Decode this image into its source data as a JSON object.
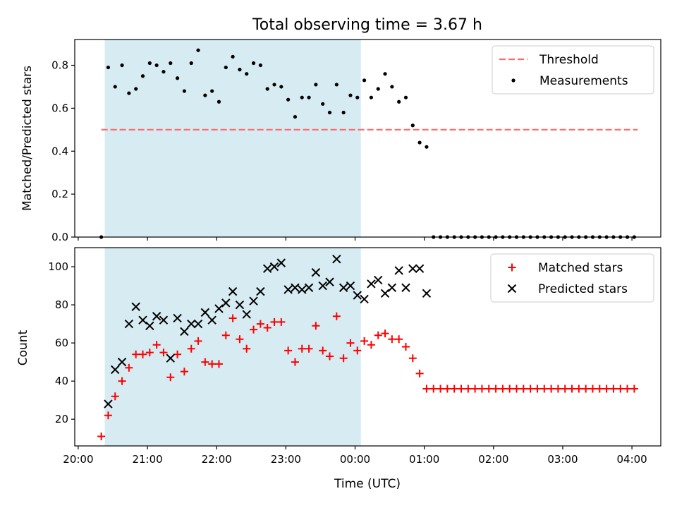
{
  "chart_data": [
    {
      "type": "scatter",
      "title": "Total observing time = 3.67 h",
      "xlabel": "",
      "ylabel": "Matched/Predicted stars",
      "xlim": [
        "19:57",
        "04:25"
      ],
      "ylim": [
        0,
        0.92
      ],
      "yticks": [
        0.0,
        0.2,
        0.4,
        0.6,
        0.8
      ],
      "ytick_labels": [
        "0.0",
        "0.2",
        "0.4",
        "0.6",
        "0.8"
      ],
      "grid": false,
      "legend_position": "top-right",
      "shaded_span": {
        "x": [
          "20:23",
          "00:05"
        ],
        "color": "#add8e6"
      },
      "threshold": {
        "name": "Threshold",
        "y": 0.5,
        "x": [
          "20:20",
          "04:05"
        ],
        "color": "#ff6b6b",
        "style": "dashed"
      },
      "series": [
        {
          "name": "Measurements",
          "marker": "dot",
          "color": "#000000",
          "x": [
            "20:20",
            "20:26",
            "20:32",
            "20:38",
            "20:44",
            "20:50",
            "20:56",
            "21:02",
            "21:08",
            "21:14",
            "21:20",
            "21:26",
            "21:32",
            "21:38",
            "21:44",
            "21:50",
            "21:56",
            "22:02",
            "22:08",
            "22:14",
            "22:20",
            "22:26",
            "22:32",
            "22:38",
            "22:44",
            "22:50",
            "22:56",
            "23:02",
            "23:08",
            "23:14",
            "23:20",
            "23:26",
            "23:32",
            "23:38",
            "23:44",
            "23:50",
            "23:56",
            "00:02",
            "00:08",
            "00:14",
            "00:20",
            "00:26",
            "00:32",
            "00:38",
            "00:44",
            "00:50",
            "00:56",
            "01:02",
            "01:08",
            "01:14",
            "01:20",
            "01:26",
            "01:32",
            "01:38",
            "01:44",
            "01:50",
            "01:56",
            "02:02",
            "02:08",
            "02:14",
            "02:20",
            "02:26",
            "02:32",
            "02:38",
            "02:44",
            "02:50",
            "02:56",
            "03:02",
            "03:08",
            "03:14",
            "03:20",
            "03:26",
            "03:32",
            "03:38",
            "03:44",
            "03:50",
            "03:56",
            "04:02"
          ],
          "y": [
            0.0,
            0.79,
            0.7,
            0.8,
            0.67,
            0.69,
            0.75,
            0.81,
            0.8,
            0.77,
            0.81,
            0.74,
            0.68,
            0.81,
            0.87,
            0.66,
            0.68,
            0.63,
            0.79,
            0.84,
            0.78,
            0.76,
            0.81,
            0.8,
            0.69,
            0.71,
            0.7,
            0.64,
            0.56,
            0.65,
            0.65,
            0.71,
            0.62,
            0.58,
            0.71,
            0.58,
            0.66,
            0.65,
            0.73,
            0.65,
            0.69,
            0.76,
            0.7,
            0.63,
            0.65,
            0.52,
            0.44,
            0.42,
            0.0,
            0.0,
            0.0,
            0.0,
            0.0,
            0.0,
            0.0,
            0.0,
            0.0,
            0.0,
            0.0,
            0.0,
            0.0,
            0.0,
            0.0,
            0.0,
            0.0,
            0.0,
            0.0,
            0.0,
            0.0,
            0.0,
            0.0,
            0.0,
            0.0,
            0.0,
            0.0,
            0.0,
            0.0,
            0.0
          ]
        }
      ]
    },
    {
      "type": "scatter",
      "title": "",
      "xlabel": "Time (UTC)",
      "ylabel": "Count",
      "xlim": [
        "19:57",
        "04:25"
      ],
      "ylim": [
        6,
        110
      ],
      "yticks": [
        20,
        40,
        60,
        80,
        100
      ],
      "ytick_labels": [
        "20",
        "40",
        "60",
        "80",
        "100"
      ],
      "xticks": [
        "20:00",
        "21:00",
        "22:00",
        "23:00",
        "00:00",
        "01:00",
        "02:00",
        "03:00",
        "04:00"
      ],
      "xtick_labels": [
        "20:00",
        "21:00",
        "22:00",
        "23:00",
        "00:00",
        "01:00",
        "02:00",
        "03:00",
        "04:00"
      ],
      "grid": false,
      "legend_position": "top-right",
      "shaded_span": {
        "x": [
          "20:23",
          "00:05"
        ],
        "color": "#add8e6"
      },
      "series": [
        {
          "name": "Matched stars",
          "marker": "plus",
          "color": "#ff0000",
          "x": [
            "20:20",
            "20:26",
            "20:32",
            "20:38",
            "20:44",
            "20:50",
            "20:56",
            "21:02",
            "21:08",
            "21:14",
            "21:20",
            "21:26",
            "21:32",
            "21:38",
            "21:44",
            "21:50",
            "21:56",
            "22:02",
            "22:08",
            "22:14",
            "22:20",
            "22:26",
            "22:32",
            "22:38",
            "22:44",
            "22:50",
            "22:56",
            "23:02",
            "23:08",
            "23:14",
            "23:20",
            "23:26",
            "23:32",
            "23:38",
            "23:44",
            "23:50",
            "23:56",
            "00:02",
            "00:08",
            "00:14",
            "00:20",
            "00:26",
            "00:32",
            "00:38",
            "00:44",
            "00:50",
            "00:56",
            "01:02",
            "01:08",
            "01:14",
            "01:20",
            "01:26",
            "01:32",
            "01:38",
            "01:44",
            "01:50",
            "01:56",
            "02:02",
            "02:08",
            "02:14",
            "02:20",
            "02:26",
            "02:32",
            "02:38",
            "02:44",
            "02:50",
            "02:56",
            "03:02",
            "03:08",
            "03:14",
            "03:20",
            "03:26",
            "03:32",
            "03:38",
            "03:44",
            "03:50",
            "03:56",
            "04:02"
          ],
          "y": [
            11,
            22,
            32,
            40,
            47,
            54,
            54,
            55,
            59,
            55,
            42,
            54,
            45,
            57,
            61,
            50,
            49,
            49,
            64,
            73,
            62,
            57,
            67,
            70,
            68,
            71,
            71,
            56,
            50,
            57,
            57,
            69,
            56,
            53,
            74,
            52,
            60,
            56,
            61,
            59,
            64,
            65,
            62,
            62,
            58,
            52,
            44,
            36,
            36,
            36,
            36,
            36,
            36,
            36,
            36,
            36,
            36,
            36,
            36,
            36,
            36,
            36,
            36,
            36,
            36,
            36,
            36,
            36,
            36,
            36,
            36,
            36,
            36,
            36,
            36,
            36,
            36,
            36
          ]
        },
        {
          "name": "Predicted stars",
          "marker": "x",
          "color": "#000000",
          "x": [
            "20:26",
            "20:32",
            "20:38",
            "20:44",
            "20:50",
            "20:56",
            "21:02",
            "21:08",
            "21:14",
            "21:20",
            "21:26",
            "21:32",
            "21:38",
            "21:44",
            "21:50",
            "21:56",
            "22:02",
            "22:08",
            "22:14",
            "22:20",
            "22:26",
            "22:32",
            "22:38",
            "22:44",
            "22:50",
            "22:56",
            "23:02",
            "23:08",
            "23:14",
            "23:20",
            "23:26",
            "23:32",
            "23:38",
            "23:44",
            "23:50",
            "23:56",
            "00:02",
            "00:08",
            "00:14",
            "00:20",
            "00:26",
            "00:32",
            "00:38",
            "00:44",
            "00:50",
            "00:56",
            "01:02"
          ],
          "y": [
            28,
            46,
            50,
            70,
            79,
            72,
            69,
            74,
            72,
            52,
            73,
            66,
            70,
            70,
            76,
            72,
            78,
            81,
            87,
            80,
            75,
            82,
            87,
            99,
            100,
            102,
            88,
            89,
            88,
            89,
            97,
            90,
            92,
            104,
            89,
            90,
            85,
            83,
            91,
            93,
            86,
            89,
            98,
            89,
            99,
            99,
            86
          ]
        }
      ]
    }
  ]
}
